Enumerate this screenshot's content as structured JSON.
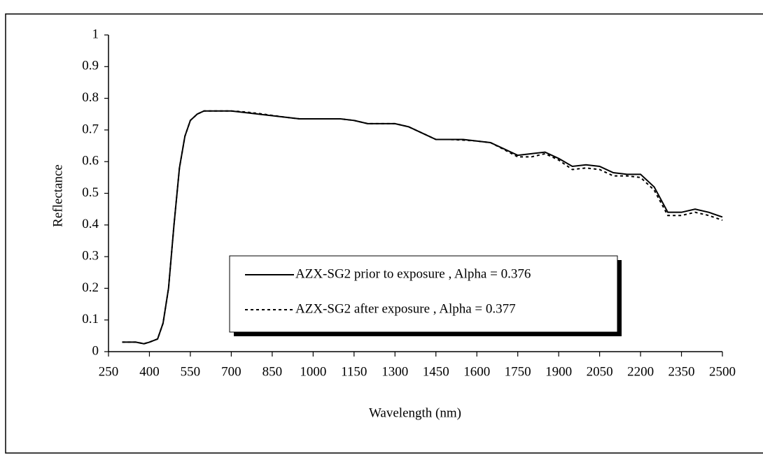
{
  "chart_data": {
    "type": "line",
    "x_label": "Wavelength (nm)",
    "y_label": "Reflectance",
    "x": [
      300,
      350,
      380,
      400,
      430,
      450,
      470,
      490,
      510,
      530,
      550,
      575,
      600,
      650,
      700,
      750,
      800,
      850,
      900,
      950,
      1000,
      1050,
      1100,
      1150,
      1200,
      1250,
      1300,
      1350,
      1400,
      1450,
      1500,
      1550,
      1600,
      1650,
      1700,
      1750,
      1800,
      1850,
      1900,
      1950,
      2000,
      2050,
      2100,
      2150,
      2200,
      2250,
      2300,
      2350,
      2400,
      2450,
      2500
    ],
    "series": [
      {
        "name": "AZX-SG2 prior to exposure , Alpha = 0.376",
        "color": "#000000",
        "dash": "solid",
        "values": [
          0.03,
          0.03,
          0.025,
          0.03,
          0.04,
          0.09,
          0.2,
          0.4,
          0.58,
          0.68,
          0.73,
          0.75,
          0.76,
          0.76,
          0.76,
          0.755,
          0.75,
          0.745,
          0.74,
          0.735,
          0.735,
          0.735,
          0.735,
          0.73,
          0.72,
          0.72,
          0.72,
          0.71,
          0.69,
          0.67,
          0.67,
          0.67,
          0.665,
          0.66,
          0.64,
          0.62,
          0.625,
          0.63,
          0.61,
          0.585,
          0.59,
          0.585,
          0.565,
          0.56,
          0.56,
          0.52,
          0.44,
          0.44,
          0.45,
          0.44,
          0.425
        ]
      },
      {
        "name": "AZX-SG2 after exposure , Alpha = 0.377",
        "color": "#000000",
        "dash": "dotted",
        "values": [
          0.03,
          0.03,
          0.025,
          0.03,
          0.04,
          0.09,
          0.2,
          0.4,
          0.58,
          0.68,
          0.73,
          0.75,
          0.76,
          0.76,
          0.76,
          0.757,
          0.752,
          0.746,
          0.74,
          0.735,
          0.735,
          0.735,
          0.735,
          0.73,
          0.72,
          0.72,
          0.72,
          0.71,
          0.69,
          0.67,
          0.67,
          0.668,
          0.665,
          0.66,
          0.638,
          0.615,
          0.615,
          0.625,
          0.605,
          0.575,
          0.58,
          0.575,
          0.555,
          0.555,
          0.55,
          0.51,
          0.43,
          0.43,
          0.44,
          0.43,
          0.415
        ]
      }
    ],
    "xlim": [
      250,
      2500
    ],
    "xticks": [
      250,
      400,
      550,
      700,
      850,
      1000,
      1150,
      1300,
      1450,
      1600,
      1750,
      1900,
      2050,
      2200,
      2350,
      2500
    ],
    "ylim": [
      0,
      1
    ],
    "yticks": [
      0,
      0.1,
      0.2,
      0.3,
      0.4,
      0.5,
      0.6,
      0.7,
      0.8,
      0.9,
      1
    ],
    "legend": "lower center"
  }
}
